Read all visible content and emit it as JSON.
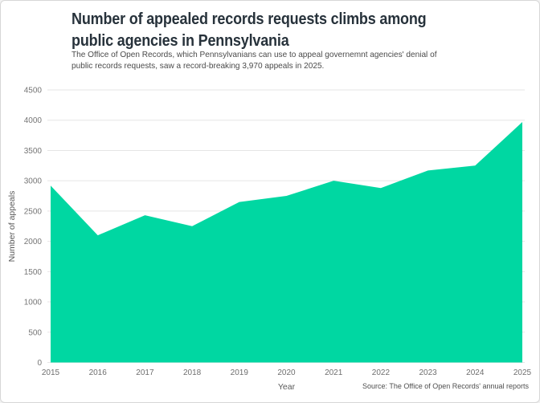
{
  "header": {
    "title_line1": "Number of appealed records requests climbs among",
    "title_line2": "public agencies in Pennsylvania",
    "subtitle_line1": "The Office of Open Records, which Pennsylvanians can use to appeal governemnt agencies' denial of",
    "subtitle_line2": "public records requests, saw a record-breaking 3,970 appeals in 2025."
  },
  "footer": {
    "source": "Source: The Office of Open Records' annual reports"
  },
  "colors": {
    "area_green": "#00d7a2",
    "title_text": "#27323b",
    "grid_gray": "#e5e5e5"
  },
  "chart_data": {
    "type": "area",
    "title": "Number of appealed records requests climbs among public agencies in Pennsylvania",
    "subtitle": "The Office of Open Records, which Pennsylvanians can use to appeal governemnt agencies' denial of public records requests, saw a record-breaking 3,970 appeals in 2025.",
    "x": [
      2015,
      2016,
      2017,
      2018,
      2019,
      2020,
      2021,
      2022,
      2023,
      2024,
      2025
    ],
    "series": [
      {
        "name": "Number of appeals",
        "values": [
          2920,
          2100,
          2430,
          2250,
          2650,
          2750,
          3000,
          2880,
          3170,
          3250,
          3970
        ]
      }
    ],
    "xlabel": "Year",
    "ylabel": "Number of appeals",
    "ylim": [
      0,
      4500
    ],
    "y_ticks": [
      0,
      500,
      1000,
      1500,
      2000,
      2500,
      3000,
      3500,
      4000,
      4500
    ],
    "grid": "horizontal",
    "legend": "none",
    "area_color": "#00d7a2",
    "source": "Source: The Office of Open Records' annual reports"
  }
}
